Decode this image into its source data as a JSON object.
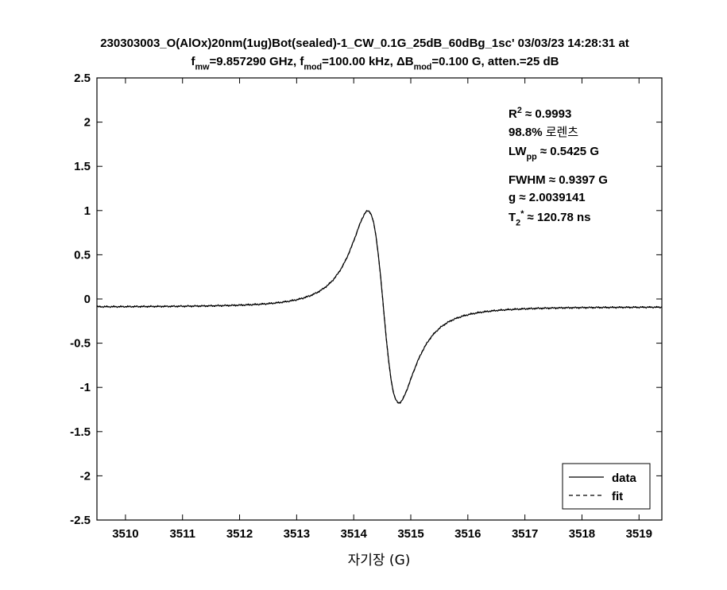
{
  "chart_data": {
    "type": "line",
    "title_line1": "230303003_O(AlOx)20nm(1ug)Bot(sealed)-1_CW_0.1G_25dB_60dBg_1sc' 03/03/23 14:28:31 at",
    "title_line2": [
      {
        "t": "f"
      },
      {
        "t": "mw",
        "sub": true
      },
      {
        "t": "=9.857290 GHz, f"
      },
      {
        "t": "mod",
        "sub": true
      },
      {
        "t": "=100.00 kHz, ΔB"
      },
      {
        "t": "mod",
        "sub": true
      },
      {
        "t": "=0.100 G, atten.=25 dB"
      }
    ],
    "xlabel": "자기장 (G)",
    "ylabel": "",
    "xlim": [
      3509.5,
      3519.4
    ],
    "ylim": [
      -2.5,
      2.5
    ],
    "xticks": [
      3510,
      3511,
      3512,
      3513,
      3514,
      3515,
      3516,
      3517,
      3518,
      3519
    ],
    "yticks": [
      2.5,
      2,
      1.5,
      1,
      0.5,
      0,
      -0.5,
      -1,
      -1.5,
      -2,
      -2.5
    ],
    "grid": false,
    "legend_position": "bottom-right",
    "annotations": [
      [
        {
          "t": "R"
        },
        {
          "t": "2",
          "sup": true
        },
        {
          "t": " ≈ 0.9993"
        }
      ],
      [
        {
          "t": "98.8% "
        },
        {
          "t": "로렌츠",
          "plain": true
        }
      ],
      [
        {
          "t": "LW"
        },
        {
          "t": "pp",
          "sub": true
        },
        {
          "t": " ≈ 0.5425 G"
        }
      ],
      [
        {
          "t": "FWHM ≈ 0.9397 G"
        }
      ],
      [
        {
          "t": "g ≈ 2.0039141"
        }
      ],
      [
        {
          "t": "T"
        },
        {
          "t": "2",
          "sub": true
        },
        {
          "t": "*",
          "sup": true
        },
        {
          "t": " ≈ 120.78 ns"
        }
      ]
    ],
    "model": {
      "center": 3514.52,
      "lw_pp": 0.5425,
      "amplitude": 2.17,
      "baseline_left": -0.09,
      "baseline_right": -0.09
    },
    "series": [
      {
        "name": "data",
        "style": "solid"
      },
      {
        "name": "fit",
        "style": "dashed"
      }
    ]
  }
}
